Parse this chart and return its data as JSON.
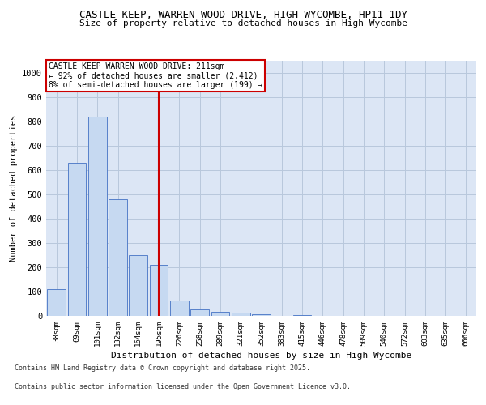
{
  "title1": "CASTLE KEEP, WARREN WOOD DRIVE, HIGH WYCOMBE, HP11 1DY",
  "title2": "Size of property relative to detached houses in High Wycombe",
  "xlabel": "Distribution of detached houses by size in High Wycombe",
  "ylabel": "Number of detached properties",
  "footer1": "Contains HM Land Registry data © Crown copyright and database right 2025.",
  "footer2": "Contains public sector information licensed under the Open Government Licence v3.0.",
  "annotation_line1": "CASTLE KEEP WARREN WOOD DRIVE: 211sqm",
  "annotation_line2": "← 92% of detached houses are smaller (2,412)",
  "annotation_line3": "8% of semi-detached houses are larger (199) →",
  "categories": [
    "38sqm",
    "69sqm",
    "101sqm",
    "132sqm",
    "164sqm",
    "195sqm",
    "226sqm",
    "258sqm",
    "289sqm",
    "321sqm",
    "352sqm",
    "383sqm",
    "415sqm",
    "446sqm",
    "478sqm",
    "509sqm",
    "540sqm",
    "572sqm",
    "603sqm",
    "635sqm",
    "666sqm"
  ],
  "values": [
    110,
    630,
    820,
    480,
    250,
    210,
    65,
    28,
    18,
    13,
    8,
    0,
    5,
    0,
    0,
    0,
    0,
    0,
    0,
    0,
    0
  ],
  "bar_color": "#c6d9f1",
  "bar_edge_color": "#4472c4",
  "vline_color": "#cc0000",
  "vline_x_index": 5.5,
  "box_color": "#cc0000",
  "background_color": "#ffffff",
  "plot_bg_color": "#dce6f5",
  "grid_color": "#b8c8dc",
  "ylim": [
    0,
    1050
  ],
  "yticks": [
    0,
    100,
    200,
    300,
    400,
    500,
    600,
    700,
    800,
    900,
    1000
  ]
}
